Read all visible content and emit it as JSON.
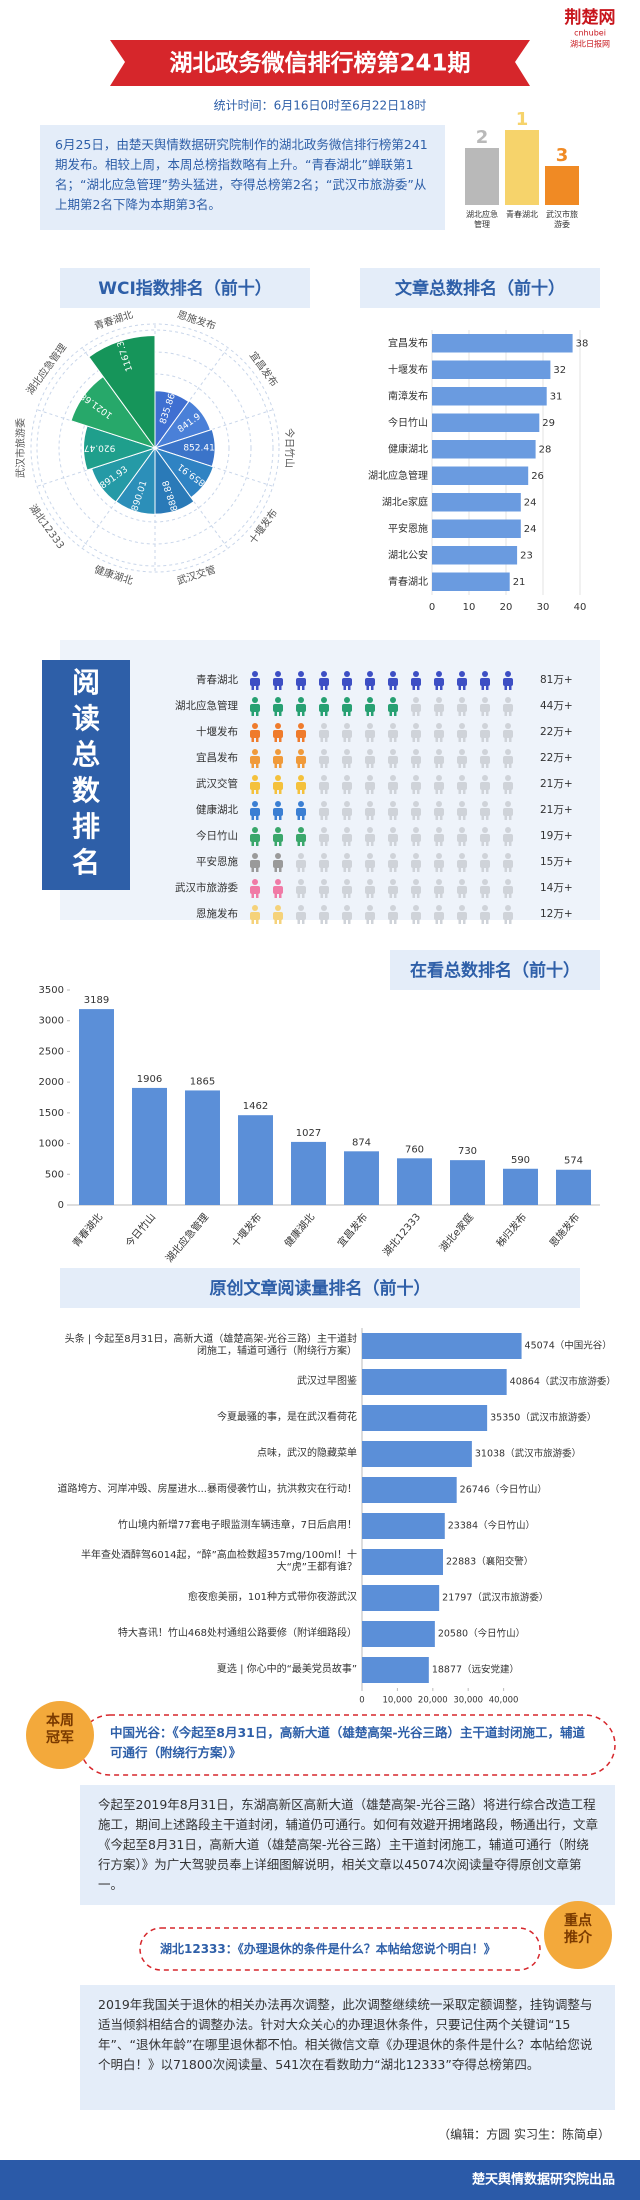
{
  "header": {
    "logo": "荆楚网",
    "logo_sub": "cnhubei",
    "logo_cn": "湖北日报网",
    "title": "湖北政务微信排行榜第241期",
    "period": "统计时间：6月16日0时至6月22日18时"
  },
  "intro": "6月25日，由楚天舆情数据研究院制作的湖北政务微信排行榜第241期发布。相较上周，本周总榜指数略有上升。“青春湖北”蝉联第1名；“湖北应急管理”势头猛进，夺得总榜第2名；“武汉市旅游委”从上期第2名下降为本期第3名。",
  "podium": [
    {
      "rank": 2,
      "name": "湖北应急管理",
      "color": "#b9b9b9"
    },
    {
      "rank": 1,
      "name": "青春湖北",
      "color": "#f6d36b"
    },
    {
      "rank": 3,
      "name": "武汉市旅游委",
      "color": "#f08a24"
    }
  ],
  "chart_data": [
    {
      "type": "polar-bar",
      "title": "WCI指数排名（前十）",
      "categories": [
        "恩施发布",
        "宜昌发布",
        "今日竹山",
        "十堰发布",
        "武汉交管",
        "健康湖北",
        "湖北12333",
        "武汉市旅游委",
        "湖北应急管理",
        "青春湖北"
      ],
      "values": [
        835.86,
        841.9,
        852.41,
        859.91,
        888.88,
        890.01,
        891.93,
        920.47,
        1021.68,
        1167.3
      ],
      "colors": [
        "#3f6fd1",
        "#4a80d8",
        "#3b74c9",
        "#2f83c3",
        "#2a7ab8",
        "#2c8fb9",
        "#259aa6",
        "#1f9f8c",
        "#27a86a",
        "#16955a"
      ],
      "rlim": [
        600,
        1200
      ]
    },
    {
      "type": "hbar",
      "title": "文章总数排名（前十）",
      "categories": [
        "宜昌发布",
        "十堰发布",
        "南漳发布",
        "今日竹山",
        "健康湖北",
        "湖北应急管理",
        "湖北e家庭",
        "平安恩施",
        "湖北公安",
        "青春湖北"
      ],
      "values": [
        38,
        32,
        31,
        29,
        28,
        26,
        24,
        24,
        23,
        21
      ],
      "color": "#6a9be0",
      "xlim": [
        0,
        40
      ],
      "xticks": [
        0,
        10,
        20,
        30,
        40
      ],
      "grid": true
    },
    {
      "type": "pictogram",
      "title": "阅读总数排名",
      "categories": [
        "青春湖北",
        "湖北应急管理",
        "十堰发布",
        "宜昌发布",
        "武汉交管",
        "健康湖北",
        "今日竹山",
        "平安恩施",
        "武汉市旅游委",
        "恩施发布"
      ],
      "values": [
        81,
        44,
        22,
        22,
        21,
        21,
        19,
        15,
        14,
        12
      ],
      "value_labels": [
        "81万+",
        "44万+",
        "22万+",
        "22万+",
        "21万+",
        "21万+",
        "19万+",
        "15万+",
        "14万+",
        "12万+"
      ],
      "colors": [
        "#3d4fc4",
        "#27a072",
        "#ef7b2c",
        "#f09a3a",
        "#f4c13c",
        "#3b7fd3",
        "#3aa76b",
        "#9a9a9a",
        "#f07aa6",
        "#f5d27a"
      ]
    },
    {
      "type": "bar",
      "title": "在看总数排名（前十）",
      "categories": [
        "青春湖北",
        "今日竹山",
        "湖北应急管理",
        "十堰发布",
        "健康湖北",
        "宜昌发布",
        "湖北12333",
        "湖北e家庭",
        "秭归发布",
        "恩施发布"
      ],
      "values": [
        3189,
        1906,
        1865,
        1462,
        1027,
        874,
        760,
        730,
        590,
        574
      ],
      "color": "#5b8fd8",
      "ylim": [
        0,
        3500
      ],
      "yticks": [
        0,
        500,
        1000,
        1500,
        2000,
        2500,
        3000,
        3500
      ]
    },
    {
      "type": "hbar-long",
      "title": "原创文章阅读量排名（前十）",
      "categories": [
        "头条 | 今起至8月31日，高新大道（雄楚高架-光谷三路）主干道封闭施工，辅道可通行（附绕行方案）",
        "武汉过早图鉴",
        "今夏最骚的事，是在武汉看荷花",
        "点味，武汉的隐藏菜单",
        "道路垮方、河岸冲毁、房屋进水...暴雨侵袭竹山，抗洪救灾在行动！",
        "竹山境内新增77套电子眼监测车辆违章，7日后启用！",
        "半年查处酒醉驾6014起，“醉”高血检数超357mg/100ml！十大“虎”王都有谁？",
        "愈夜愈美丽，101种方式带你夜游武汉",
        "特大喜讯！竹山468处村通组公路要修（附详细路段）",
        "夏选 | 你心中的“最美党员故事”"
      ],
      "values": [
        45074,
        40864,
        35350,
        31038,
        26746,
        23384,
        22883,
        21797,
        20580,
        18877
      ],
      "value_labels": [
        "45074（中国光谷）",
        "40864（武汉市旅游委）",
        "35350（武汉市旅游委）",
        "31038（武汉市旅游委）",
        "26746（今日竹山）",
        "23384（今日竹山）",
        "22883（襄阳交警）",
        "21797（武汉市旅游委）",
        "20580（今日竹山）",
        "18877（远安党建）"
      ],
      "color": "#5b8fd8",
      "xlim": [
        0,
        50000
      ],
      "xticks": [
        0,
        {
          "value": 10000,
          "label": "10,000"
        },
        {
          "value": 20000,
          "label": "20,000"
        },
        {
          "value": 30000,
          "label": "30,000"
        },
        {
          "value": 40000,
          "label": "40,000"
        }
      ]
    }
  ],
  "champion": {
    "badge": "本周冠军",
    "headline": "中国光谷：《今起至8月31日，高新大道（雄楚高架-光谷三路）主干道封闭施工，辅道可通行（附绕行方案）》",
    "text": "今起至2019年8月31日，东湖高新区高新大道（雄楚高架-光谷三路）将进行综合改造工程施工，期间上述路段主干道封闭，辅道仍可通行。如何有效避开拥堵路段，畅通出行，文章《今起至8月31日，高新大道（雄楚高架-光谷三路）主干道封闭施工，辅道可通行（附绕行方案）》为广大驾驶员奉上详细图解说明，相关文章以45074次阅读量夺得原创文章第一。"
  },
  "recommend": {
    "badge": "重点推介",
    "headline": "湖北12333：《办理退休的条件是什么？本帖给您说个明白！》",
    "text": "2019年我国关于退休的相关办法再次调整，此次调整继续统一采取定额调整，挂钩调整与适当倾斜相结合的调整办法。针对大众关心的办理退休条件，只要记住两个关键词“15年”、“退休年龄”在哪里退休都不怕。相关微信文章《办理退休的条件是什么？本帖给您说个明白！》以71800次阅读量、541次在看数助力“湖北12333”夺得总榜第四。"
  },
  "editor": "（编辑：方圆  实习生：陈简卓）",
  "footer": "楚天舆情数据研究院出品"
}
